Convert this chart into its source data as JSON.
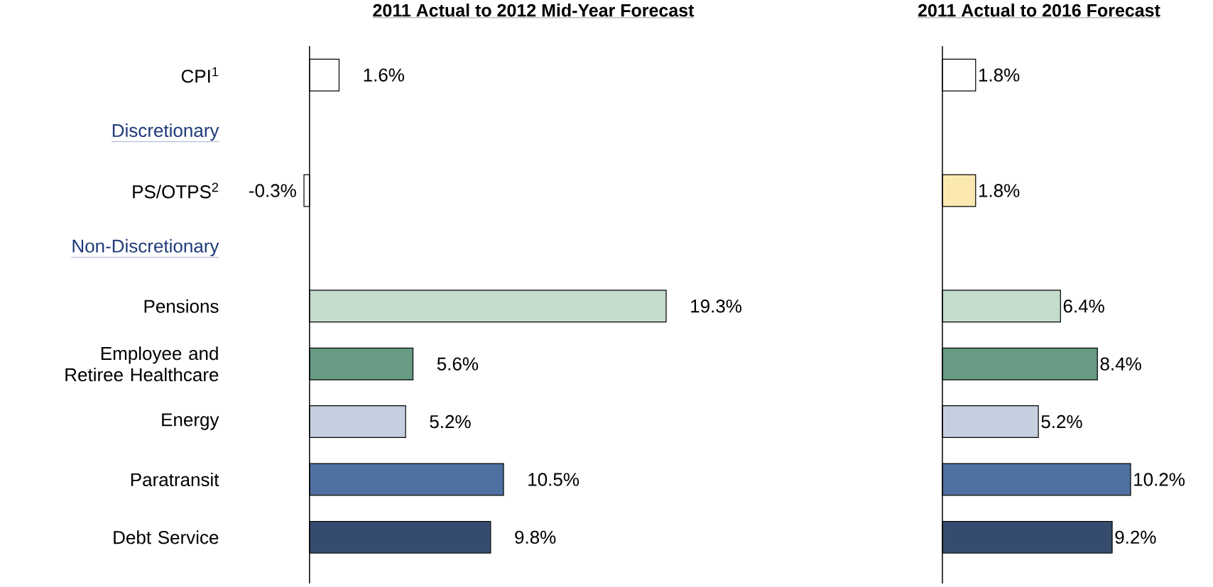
{
  "chart_data": [
    {
      "type": "bar",
      "orientation": "horizontal",
      "title": "2011 Actual to 2012 Mid-Year Forecast",
      "categories": [
        "CPI$^{1}$",
        "Discretionary",
        "PS/OTPS$^{2}$",
        "Non-Discretionary",
        "Pensions",
        "Employee and Retiree Healthcare",
        "Energy",
        "Paratransit",
        "Debt Service"
      ],
      "values": [
        1.6,
        null,
        -0.3,
        null,
        19.3,
        5.6,
        5.2,
        10.5,
        9.8
      ],
      "colors": [
        "#ffffff",
        null,
        "#ffffff",
        null,
        "#c3dccb",
        "#679b84",
        "#c5cfe0",
        "#4f71a1",
        "#364c6e"
      ],
      "value_labels": [
        "1.6%",
        null,
        "-0.3%",
        null,
        "19.3%",
        "5.6%",
        "5.2%",
        "10.5%",
        "9.8%"
      ]
    },
    {
      "type": "bar",
      "orientation": "horizontal",
      "title": "2011 Actual to 2016 Forecast",
      "categories": [
        null,
        null,
        null,
        null,
        null,
        null,
        null,
        null,
        null
      ],
      "values": [
        1.8,
        null,
        1.8,
        null,
        6.4,
        8.4,
        5.2,
        10.2,
        9.2
      ],
      "colors": [
        "#ffffff",
        null,
        "#fce9b2",
        null,
        "#c3dccb",
        "#679b84",
        "#c5cfe0",
        "#4f71a1",
        "#364c6e"
      ],
      "value_labels": [
        "1.8%",
        null,
        "1.8%",
        null,
        "6.4%",
        "8.4%",
        "5.2%",
        "10.2%",
        "9.2%"
      ]
    }
  ]
}
